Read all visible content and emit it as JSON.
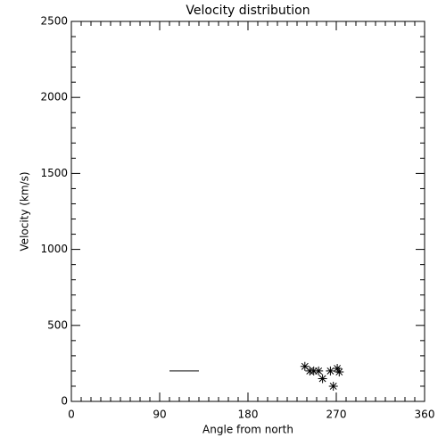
{
  "chart_data": {
    "type": "scatter",
    "title": "Velocity distribution",
    "x_label": "Angle from north",
    "y_label": "Velocity (km/s)",
    "points": {
      "x": [
        238,
        243,
        247,
        252,
        256,
        264,
        267,
        271,
        273
      ],
      "y": [
        230,
        200,
        200,
        200,
        150,
        200,
        100,
        217,
        194
      ]
    },
    "segment": {
      "x": [
        100,
        130
      ],
      "y": [
        200,
        200
      ]
    },
    "color": "#000000",
    "xlim": [
      0,
      360
    ],
    "xticks": [
      0,
      90,
      180,
      270,
      360
    ],
    "xminor": 9,
    "ylim": [
      0,
      2500
    ],
    "yticks": [
      0,
      500,
      1000,
      1500,
      2000,
      2500
    ],
    "yminor": 5
  }
}
